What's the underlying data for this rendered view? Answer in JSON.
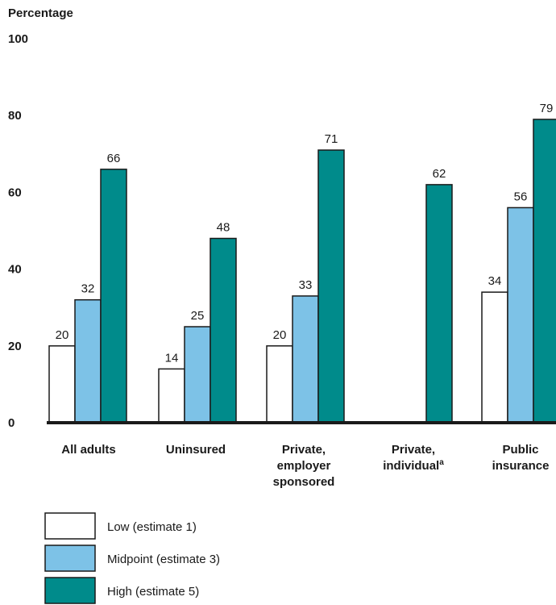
{
  "chart_data": {
    "type": "bar",
    "ylabel": "Percentage",
    "ylim": [
      0,
      100
    ],
    "yticks": [
      0,
      20,
      40,
      60,
      80,
      100
    ],
    "categories": [
      [
        "All adults"
      ],
      [
        "Uninsured"
      ],
      [
        "Private,",
        "employer",
        "sponsored"
      ],
      [
        "Private,",
        "individual"
      ],
      [
        "Public",
        "insurance"
      ]
    ],
    "category_superscripts": [
      "",
      "",
      "",
      "a",
      ""
    ],
    "series": [
      {
        "name": "Low (estimate 1)",
        "color": "#ffffff",
        "values": [
          20,
          14,
          20,
          null,
          34
        ]
      },
      {
        "name": "Midpoint (estimate 3)",
        "color": "#7dc2e7",
        "values": [
          32,
          25,
          33,
          null,
          56
        ]
      },
      {
        "name": "High (estimate 5)",
        "color": "#008b8b",
        "values": [
          66,
          48,
          71,
          62,
          79
        ]
      }
    ],
    "grid": false,
    "legend": "bottom-left"
  }
}
